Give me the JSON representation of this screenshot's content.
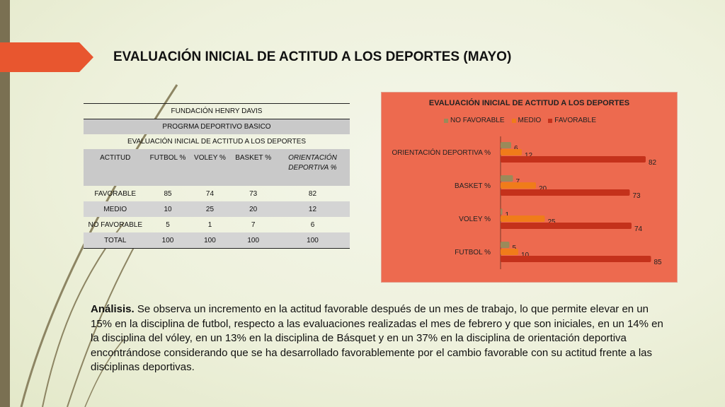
{
  "slide": {
    "title": "EVALUACIÓN INICIAL DE ACTITUD A LOS DEPORTES (MAYO)"
  },
  "table": {
    "org": "FUNDACIÓN HENRY DAVIS",
    "program": "PROGRMA DEPORTIVO BASICO",
    "subtitle": "EVALUACIÓN INICIAL DE ACTITUD A LOS DEPORTES",
    "headers": [
      "ACTITUD",
      "FUTBOL %",
      "VOLEY %",
      "BASKET %",
      "ORIENTACIÓN DEPORTIVA %"
    ],
    "rows": [
      [
        "FAVORABLE",
        "85",
        "74",
        "73",
        "82"
      ],
      [
        "MEDIO",
        "10",
        "25",
        "20",
        "12"
      ],
      [
        "NO FAVORABLE",
        "5",
        "1",
        "7",
        "6"
      ],
      [
        "TOTAL",
        "100",
        "100",
        "100",
        "100"
      ]
    ]
  },
  "chart_data": {
    "type": "bar",
    "orientation": "horizontal",
    "title": "EVALUACIÓN INICIAL DE ACTITUD A LOS DEPORTES",
    "categories": [
      "FUTBOL %",
      "VOLEY %",
      "BASKET %",
      "ORIENTACIÓN DEPORTIVA %"
    ],
    "series": [
      {
        "name": "NO FAVORABLE",
        "values": [
          5,
          1,
          7,
          6
        ],
        "color": "#9a8a5a"
      },
      {
        "name": "MEDIO",
        "values": [
          10,
          25,
          20,
          12
        ],
        "color": "#f07c1a"
      },
      {
        "name": "FAVORABLE",
        "values": [
          85,
          74,
          73,
          82
        ],
        "color": "#c4311b"
      }
    ],
    "xlim": [
      0,
      90
    ],
    "legend": "top",
    "grid": false,
    "background": "#ed6a4f"
  },
  "analysis": {
    "label": "Análisis.",
    "text": " Se observa un incremento en la actitud favorable después de un mes de trabajo, lo que permite elevar en un 15% en la disciplina de futbol, respecto a las evaluaciones realizadas el mes de febrero y que son iniciales, en un 14% en la disciplina del vóley,  en un 13% en la disciplina de Básquet y en un 37% en la disciplina de orientación deportiva encontrándose  considerando que se ha desarrollado favorablemente por el cambio favorable con su actitud frente a las disciplinas deportivas."
  },
  "colors": {
    "accent": "#e8562f",
    "sidebar": "#7a7052"
  }
}
